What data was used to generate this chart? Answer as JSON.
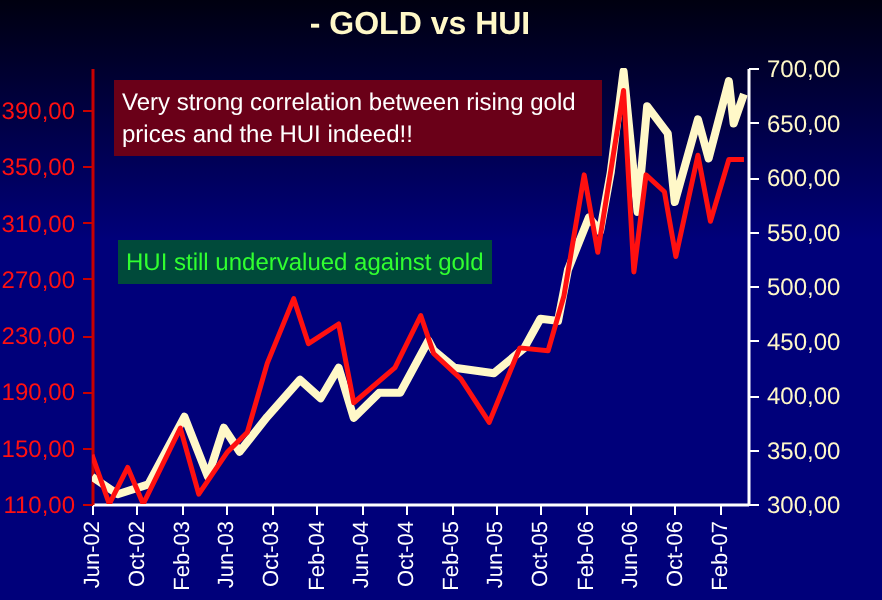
{
  "chart_data": {
    "type": "line",
    "title": "- GOLD vs HUI",
    "annotations": [
      "Very strong correlation between rising gold prices and the HUI indeed!!",
      "HUI still undervalued against gold"
    ],
    "xlim": [
      "2002-06-01",
      "2007-04-18"
    ],
    "xticks": [
      {
        "value": "2002-06-01",
        "label": "Jun-02"
      },
      {
        "value": "2002-10-01",
        "label": "Oct-02"
      },
      {
        "value": "2003-02-01",
        "label": "Feb-03"
      },
      {
        "value": "2003-06-01",
        "label": "Jun-03"
      },
      {
        "value": "2003-10-01",
        "label": "Oct-03"
      },
      {
        "value": "2004-02-01",
        "label": "Feb-04"
      },
      {
        "value": "2004-06-01",
        "label": "Jun-04"
      },
      {
        "value": "2004-10-01",
        "label": "Oct-04"
      },
      {
        "value": "2005-02-01",
        "label": "Feb-05"
      },
      {
        "value": "2005-06-01",
        "label": "Jun-05"
      },
      {
        "value": "2005-10-01",
        "label": "Oct-05"
      },
      {
        "value": "2006-02-01",
        "label": "Feb-06"
      },
      {
        "value": "2006-06-01",
        "label": "Jun-06"
      },
      {
        "value": "2006-10-01",
        "label": "Oct-06"
      },
      {
        "value": "2007-02-01",
        "label": "Feb-07"
      }
    ],
    "ylim": [
      110,
      420
    ],
    "yticks": [
      {
        "value": 110,
        "label": "110,00"
      },
      {
        "value": 150,
        "label": "150,00"
      },
      {
        "value": 190,
        "label": "190,00"
      },
      {
        "value": 230,
        "label": "230,00"
      },
      {
        "value": 270,
        "label": "270,00"
      },
      {
        "value": 310,
        "label": "310,00"
      },
      {
        "value": 350,
        "label": "350,00"
      },
      {
        "value": 390,
        "label": "390,00"
      }
    ],
    "y2lim": [
      300,
      700
    ],
    "y2ticks": [
      {
        "value": 300,
        "label": "300,00"
      },
      {
        "value": 350,
        "label": "350,00"
      },
      {
        "value": 400,
        "label": "400,00"
      },
      {
        "value": 450,
        "label": "450,00"
      },
      {
        "value": 500,
        "label": "500,00"
      },
      {
        "value": 550,
        "label": "550,00"
      },
      {
        "value": 600,
        "label": "600,00"
      },
      {
        "value": 650,
        "label": "650,00"
      },
      {
        "value": 700,
        "label": "700,00"
      }
    ],
    "grid": false,
    "legend": false,
    "line_style": "solid",
    "marker": "none",
    "series": [
      {
        "color": "#fff8c8",
        "axis": "y2",
        "x": [
          "2002-06-01",
          "2002-08-10",
          "2002-11-01",
          "2003-02-07",
          "2003-04-12",
          "2003-05-25",
          "2003-07-07",
          "2003-09-20",
          "2003-12-18",
          "2004-02-12",
          "2004-04-01",
          "2004-05-12",
          "2004-07-20",
          "2004-09-15",
          "2004-12-01",
          "2004-12-15",
          "2005-02-10",
          "2005-05-28",
          "2005-08-18",
          "2005-10-01",
          "2005-11-18",
          "2005-12-15",
          "2006-02-10",
          "2006-03-12",
          "2006-04-10",
          "2006-05-15",
          "2006-06-22",
          "2006-07-18",
          "2006-09-12",
          "2006-10-01",
          "2006-12-03",
          "2007-01-01",
          "2007-02-25",
          "2007-03-10",
          "2007-04-07"
        ],
        "values": [
          325,
          309,
          318,
          380,
          325,
          370,
          348,
          380,
          414,
          397,
          425,
          379,
          402,
          402,
          450,
          441,
          425,
          420,
          443,
          470,
          468,
          515,
          563,
          550,
          604,
          697,
          568,
          665,
          640,
          577,
          653,
          617,
          688,
          649,
          676
        ]
      },
      {
        "color": "#ff1010",
        "x": [
          "2002-06-01",
          "2002-07-18",
          "2002-09-06",
          "2002-10-18",
          "2003-01-27",
          "2003-03-18",
          "2003-06-04",
          "2003-07-28",
          "2003-09-20",
          "2003-12-01",
          "2004-01-10",
          "2004-04-01",
          "2004-05-12",
          "2004-09-01",
          "2004-11-10",
          "2004-12-15",
          "2005-02-27",
          "2005-05-15",
          "2005-08-06",
          "2005-10-22",
          "2005-12-04",
          "2006-01-28",
          "2006-03-06",
          "2006-05-15",
          "2006-06-12",
          "2006-07-15",
          "2006-09-03",
          "2006-10-04",
          "2006-12-03",
          "2007-01-06",
          "2007-02-25",
          "2007-04-07"
        ],
        "values": [
          145,
          110,
          136,
          110,
          164,
          117,
          147,
          161,
          210,
          256,
          224,
          238,
          182,
          207,
          244,
          217,
          199,
          168,
          221,
          219,
          258,
          344,
          289,
          404,
          275,
          344,
          332,
          286,
          358,
          311,
          355,
          355
        ]
      }
    ]
  }
}
